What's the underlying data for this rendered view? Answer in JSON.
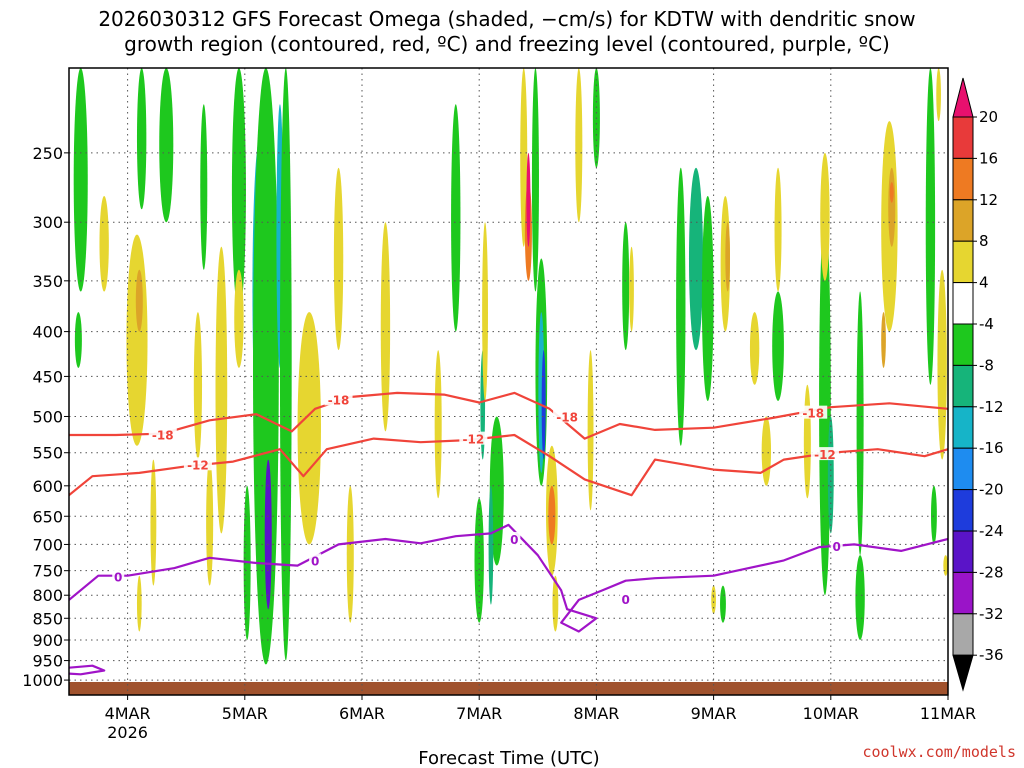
{
  "chart_data": {
    "type": "heatmap",
    "title_line1": "2026030312 GFS Forecast Omega (shaded, −cm/s) for KDTW with dendritic snow",
    "title_line2": "growth region (contoured, red, ºC) and freezing level (contoured, purple, ºC)",
    "xlabel": "Forecast Time (UTC)",
    "credit": "coolwx.com/models",
    "x_range_days": [
      0,
      7.5
    ],
    "x_ticks": [
      {
        "label": "4MAR",
        "day": 0.5,
        "sub": "2026"
      },
      {
        "label": "5MAR",
        "day": 1.5
      },
      {
        "label": "6MAR",
        "day": 2.5
      },
      {
        "label": "7MAR",
        "day": 3.5
      },
      {
        "label": "8MAR",
        "day": 4.5
      },
      {
        "label": "9MAR",
        "day": 5.5
      },
      {
        "label": "10MAR",
        "day": 6.5
      },
      {
        "label": "11MAR",
        "day": 7.5
      }
    ],
    "y_axis": {
      "type": "log-pressure",
      "top_hpa": 200,
      "bottom_hpa": 1040,
      "ticks": [
        250,
        300,
        350,
        400,
        450,
        500,
        550,
        600,
        650,
        700,
        750,
        800,
        850,
        900,
        950,
        1000
      ]
    },
    "colorbar": {
      "ticks": [
        20,
        16,
        12,
        8,
        4,
        -4,
        -8,
        -12,
        -16,
        -20,
        -24,
        -28,
        -32,
        -36
      ],
      "levels": [
        {
          "lo": 20,
          "hi": 24,
          "color": "#e8106e"
        },
        {
          "lo": 16,
          "hi": 20,
          "color": "#e83a3a"
        },
        {
          "lo": 12,
          "hi": 16,
          "color": "#ee7a22"
        },
        {
          "lo": 8,
          "hi": 12,
          "color": "#dca428"
        },
        {
          "lo": 4,
          "hi": 8,
          "color": "#e6d630"
        },
        {
          "lo": -4,
          "hi": 4,
          "color": "#ffffff"
        },
        {
          "lo": -8,
          "hi": -4,
          "color": "#1ec81e"
        },
        {
          "lo": -12,
          "hi": -8,
          "color": "#16b47a"
        },
        {
          "lo": -16,
          "hi": -12,
          "color": "#16b4c8"
        },
        {
          "lo": -20,
          "hi": -16,
          "color": "#1e8cf0"
        },
        {
          "lo": -24,
          "hi": -20,
          "color": "#1e3cdc"
        },
        {
          "lo": -28,
          "hi": -24,
          "color": "#5a14c8"
        },
        {
          "lo": -32,
          "hi": -28,
          "color": "#9a14c8"
        },
        {
          "lo": -36,
          "hi": -32,
          "color": "#a8a8a8"
        },
        {
          "lo": -40,
          "hi": -36,
          "color": "#000000"
        }
      ]
    },
    "omega_cells": [
      {
        "day": 1.62,
        "p_top": 260,
        "p_bot": 480,
        "width": 0.07,
        "value": -28
      },
      {
        "day": 1.63,
        "p_top": 240,
        "p_bot": 540,
        "width": 0.13,
        "value": -16
      },
      {
        "day": 1.68,
        "p_top": 200,
        "p_bot": 960,
        "width": 0.22,
        "value": -8
      },
      {
        "day": 1.7,
        "p_top": 560,
        "p_bot": 830,
        "width": 0.06,
        "value": -28
      },
      {
        "day": 1.85,
        "p_top": 360,
        "p_bot": 420,
        "width": 0.05,
        "value": -24
      },
      {
        "day": 1.8,
        "p_top": 220,
        "p_bot": 440,
        "width": 0.06,
        "value": -16
      },
      {
        "day": 1.85,
        "p_top": 200,
        "p_bot": 950,
        "width": 0.1,
        "value": -8
      },
      {
        "day": 1.45,
        "p_top": 220,
        "p_bot": 300,
        "width": 0.06,
        "value": -12
      },
      {
        "day": 1.45,
        "p_top": 200,
        "p_bot": 380,
        "width": 0.12,
        "value": -8
      },
      {
        "day": 1.52,
        "p_top": 600,
        "p_bot": 900,
        "width": 0.06,
        "value": -8
      },
      {
        "day": 2.05,
        "p_top": 380,
        "p_bot": 700,
        "width": 0.2,
        "value": 6
      },
      {
        "day": 2.3,
        "p_top": 260,
        "p_bot": 420,
        "width": 0.08,
        "value": 6
      },
      {
        "day": 1.3,
        "p_top": 320,
        "p_bot": 680,
        "width": 0.1,
        "value": 6
      },
      {
        "day": 1.1,
        "p_top": 380,
        "p_bot": 560,
        "width": 0.07,
        "value": 5
      },
      {
        "day": 1.2,
        "p_top": 560,
        "p_bot": 780,
        "width": 0.06,
        "value": 6
      },
      {
        "day": 0.58,
        "p_top": 310,
        "p_bot": 540,
        "width": 0.18,
        "value": 6
      },
      {
        "day": 0.6,
        "p_top": 340,
        "p_bot": 400,
        "width": 0.06,
        "value": 9
      },
      {
        "day": 0.3,
        "p_top": 280,
        "p_bot": 360,
        "width": 0.08,
        "value": 6
      },
      {
        "day": 0.1,
        "p_top": 200,
        "p_bot": 360,
        "width": 0.12,
        "value": -8
      },
      {
        "day": 0.08,
        "p_top": 380,
        "p_bot": 440,
        "width": 0.06,
        "value": -8
      },
      {
        "day": 0.62,
        "p_top": 200,
        "p_bot": 290,
        "width": 0.08,
        "value": -8
      },
      {
        "day": 0.83,
        "p_top": 200,
        "p_bot": 300,
        "width": 0.12,
        "value": -8
      },
      {
        "day": 1.45,
        "p_top": 340,
        "p_bot": 440,
        "width": 0.08,
        "value": 6
      },
      {
        "day": 0.72,
        "p_top": 560,
        "p_bot": 780,
        "width": 0.05,
        "value": 5
      },
      {
        "day": 0.6,
        "p_top": 760,
        "p_bot": 880,
        "width": 0.04,
        "value": 5
      },
      {
        "day": 1.15,
        "p_top": 220,
        "p_bot": 340,
        "width": 0.06,
        "value": -8
      },
      {
        "day": 2.4,
        "p_top": 600,
        "p_bot": 860,
        "width": 0.06,
        "value": 6
      },
      {
        "day": 2.7,
        "p_top": 300,
        "p_bot": 520,
        "width": 0.08,
        "value": 6
      },
      {
        "day": 3.15,
        "p_top": 420,
        "p_bot": 620,
        "width": 0.06,
        "value": 5
      },
      {
        "day": 3.5,
        "p_top": 620,
        "p_bot": 860,
        "width": 0.08,
        "value": -8
      },
      {
        "day": 3.65,
        "p_top": 500,
        "p_bot": 740,
        "width": 0.12,
        "value": -8
      },
      {
        "day": 3.6,
        "p_top": 600,
        "p_bot": 820,
        "width": 0.04,
        "value": -12
      },
      {
        "day": 3.53,
        "p_top": 420,
        "p_bot": 560,
        "width": 0.04,
        "value": -12
      },
      {
        "day": 3.55,
        "p_top": 300,
        "p_bot": 480,
        "width": 0.05,
        "value": 5
      },
      {
        "day": 3.3,
        "p_top": 220,
        "p_bot": 400,
        "width": 0.08,
        "value": -8
      },
      {
        "day": 3.88,
        "p_top": 200,
        "p_bot": 320,
        "width": 0.06,
        "value": 6
      },
      {
        "day": 3.92,
        "p_top": 270,
        "p_bot": 350,
        "width": 0.06,
        "value": 14
      },
      {
        "day": 3.92,
        "p_top": 250,
        "p_bot": 320,
        "width": 0.03,
        "value": 20
      },
      {
        "day": 3.98,
        "p_top": 200,
        "p_bot": 360,
        "width": 0.06,
        "value": -8
      },
      {
        "day": 4.03,
        "p_top": 330,
        "p_bot": 600,
        "width": 0.1,
        "value": -8
      },
      {
        "day": 4.03,
        "p_top": 380,
        "p_bot": 580,
        "width": 0.05,
        "value": -16
      },
      {
        "day": 4.05,
        "p_top": 420,
        "p_bot": 560,
        "width": 0.03,
        "value": -24
      },
      {
        "day": 4.12,
        "p_top": 540,
        "p_bot": 760,
        "width": 0.1,
        "value": 6
      },
      {
        "day": 4.12,
        "p_top": 600,
        "p_bot": 700,
        "width": 0.06,
        "value": 12
      },
      {
        "day": 4.15,
        "p_top": 760,
        "p_bot": 880,
        "width": 0.05,
        "value": 6
      },
      {
        "day": 4.35,
        "p_top": 200,
        "p_bot": 300,
        "width": 0.06,
        "value": 6
      },
      {
        "day": 4.45,
        "p_top": 420,
        "p_bot": 640,
        "width": 0.05,
        "value": 5
      },
      {
        "day": 4.5,
        "p_top": 200,
        "p_bot": 260,
        "width": 0.06,
        "value": -8
      },
      {
        "day": 4.75,
        "p_top": 300,
        "p_bot": 420,
        "width": 0.06,
        "value": -8
      },
      {
        "day": 4.8,
        "p_top": 320,
        "p_bot": 400,
        "width": 0.04,
        "value": 6
      },
      {
        "day": 5.22,
        "p_top": 260,
        "p_bot": 540,
        "width": 0.08,
        "value": -8
      },
      {
        "day": 5.35,
        "p_top": 260,
        "p_bot": 420,
        "width": 0.12,
        "value": -12
      },
      {
        "day": 5.45,
        "p_top": 280,
        "p_bot": 480,
        "width": 0.1,
        "value": -8
      },
      {
        "day": 5.6,
        "p_top": 280,
        "p_bot": 400,
        "width": 0.08,
        "value": 6
      },
      {
        "day": 5.62,
        "p_top": 300,
        "p_bot": 360,
        "width": 0.04,
        "value": 10
      },
      {
        "day": 5.85,
        "p_top": 380,
        "p_bot": 460,
        "width": 0.08,
        "value": 5
      },
      {
        "day": 6.05,
        "p_top": 260,
        "p_bot": 360,
        "width": 0.06,
        "value": 5
      },
      {
        "day": 6.05,
        "p_top": 360,
        "p_bot": 480,
        "width": 0.1,
        "value": -8
      },
      {
        "day": 5.95,
        "p_top": 500,
        "p_bot": 600,
        "width": 0.08,
        "value": 5
      },
      {
        "day": 6.3,
        "p_top": 460,
        "p_bot": 620,
        "width": 0.06,
        "value": 5
      },
      {
        "day": 5.58,
        "p_top": 780,
        "p_bot": 860,
        "width": 0.05,
        "value": -8
      },
      {
        "day": 5.5,
        "p_top": 780,
        "p_bot": 840,
        "width": 0.04,
        "value": 5
      },
      {
        "day": 6.45,
        "p_top": 290,
        "p_bot": 800,
        "width": 0.1,
        "value": -8
      },
      {
        "day": 6.5,
        "p_top": 500,
        "p_bot": 680,
        "width": 0.05,
        "value": -12
      },
      {
        "day": 6.45,
        "p_top": 250,
        "p_bot": 350,
        "width": 0.08,
        "value": 5
      },
      {
        "day": 6.75,
        "p_top": 360,
        "p_bot": 720,
        "width": 0.06,
        "value": -8
      },
      {
        "day": 6.75,
        "p_top": 720,
        "p_bot": 900,
        "width": 0.08,
        "value": -8
      },
      {
        "day": 7.0,
        "p_top": 230,
        "p_bot": 400,
        "width": 0.14,
        "value": 6
      },
      {
        "day": 7.02,
        "p_top": 260,
        "p_bot": 320,
        "width": 0.06,
        "value": 10
      },
      {
        "day": 7.02,
        "p_top": 270,
        "p_bot": 285,
        "width": 0.03,
        "value": 13
      },
      {
        "day": 6.95,
        "p_top": 380,
        "p_bot": 440,
        "width": 0.04,
        "value": 10
      },
      {
        "day": 7.35,
        "p_top": 200,
        "p_bot": 460,
        "width": 0.08,
        "value": -8
      },
      {
        "day": 7.42,
        "p_top": 200,
        "p_bot": 230,
        "width": 0.04,
        "value": 5
      },
      {
        "day": 7.45,
        "p_top": 340,
        "p_bot": 560,
        "width": 0.08,
        "value": 6
      },
      {
        "day": 7.48,
        "p_top": 720,
        "p_bot": 760,
        "width": 0.04,
        "value": 5
      },
      {
        "day": 7.38,
        "p_top": 600,
        "p_bot": 700,
        "width": 0.05,
        "value": -8
      }
    ],
    "contours": [
      {
        "name": "dgz-minus-18",
        "label": "-18",
        "color": "#f0443a",
        "points": [
          [
            0,
            525
          ],
          [
            0.4,
            525
          ],
          [
            0.8,
            523
          ],
          [
            1.2,
            505
          ],
          [
            1.6,
            497
          ],
          [
            1.9,
            520
          ],
          [
            2.1,
            490
          ],
          [
            2.4,
            475
          ],
          [
            2.8,
            470
          ],
          [
            3.2,
            472
          ],
          [
            3.5,
            482
          ],
          [
            3.8,
            470
          ],
          [
            4.1,
            490
          ],
          [
            4.4,
            530
          ],
          [
            4.7,
            510
          ],
          [
            5.0,
            518
          ],
          [
            5.5,
            515
          ],
          [
            6.0,
            502
          ],
          [
            6.5,
            488
          ],
          [
            7.0,
            483
          ],
          [
            7.5,
            490
          ]
        ],
        "label_at": [
          [
            0.8,
            524
          ],
          [
            2.3,
            478
          ],
          [
            4.25,
            500
          ],
          [
            6.35,
            495
          ]
        ]
      },
      {
        "name": "dgz-minus-12",
        "label": "-12",
        "color": "#f0443a",
        "points": [
          [
            0,
            615
          ],
          [
            0.2,
            585
          ],
          [
            0.6,
            580
          ],
          [
            1.0,
            570
          ],
          [
            1.4,
            563
          ],
          [
            1.8,
            545
          ],
          [
            2.0,
            585
          ],
          [
            2.2,
            545
          ],
          [
            2.6,
            530
          ],
          [
            3.0,
            535
          ],
          [
            3.4,
            532
          ],
          [
            3.8,
            525
          ],
          [
            4.1,
            555
          ],
          [
            4.4,
            590
          ],
          [
            4.8,
            615
          ],
          [
            5.0,
            560
          ],
          [
            5.5,
            575
          ],
          [
            5.9,
            580
          ],
          [
            6.1,
            560
          ],
          [
            6.5,
            550
          ],
          [
            6.9,
            545
          ],
          [
            7.3,
            555
          ],
          [
            7.5,
            545
          ]
        ],
        "label_at": [
          [
            1.1,
            567
          ],
          [
            3.45,
            530
          ],
          [
            6.45,
            552
          ]
        ]
      },
      {
        "name": "freezing-level",
        "label": "0",
        "color": "#a014c8",
        "points": [
          [
            0,
            810
          ],
          [
            0.25,
            760
          ],
          [
            0.5,
            760
          ],
          [
            0.9,
            745
          ],
          [
            1.2,
            725
          ],
          [
            1.6,
            735
          ],
          [
            1.95,
            740
          ],
          [
            2.3,
            700
          ],
          [
            2.7,
            690
          ],
          [
            3.0,
            698
          ],
          [
            3.3,
            685
          ],
          [
            3.6,
            680
          ],
          [
            3.75,
            665
          ],
          [
            4.0,
            720
          ],
          [
            4.2,
            790
          ],
          [
            4.25,
            830
          ],
          [
            4.5,
            850
          ],
          [
            4.35,
            880
          ],
          [
            4.2,
            860
          ],
          [
            4.35,
            810
          ],
          [
            4.55,
            790
          ],
          [
            4.75,
            770
          ],
          [
            5.0,
            765
          ],
          [
            5.5,
            760
          ],
          [
            5.8,
            745
          ],
          [
            6.1,
            730
          ],
          [
            6.4,
            705
          ],
          [
            6.7,
            700
          ],
          [
            7.1,
            712
          ],
          [
            7.5,
            690
          ]
        ],
        "label_at": [
          [
            0.42,
            762
          ],
          [
            2.1,
            730
          ],
          [
            3.8,
            690
          ],
          [
            4.75,
            808
          ],
          [
            6.55,
            703
          ]
        ]
      },
      {
        "name": "freezing-level-low",
        "label": "",
        "color": "#a014c8",
        "points": [
          [
            0,
            968
          ],
          [
            0.2,
            963
          ],
          [
            0.3,
            975
          ],
          [
            0.1,
            985
          ],
          [
            0,
            983
          ]
        ],
        "label_at": []
      }
    ],
    "ground": {
      "pressure_hpa": 1005,
      "color": "#a0522d"
    }
  }
}
